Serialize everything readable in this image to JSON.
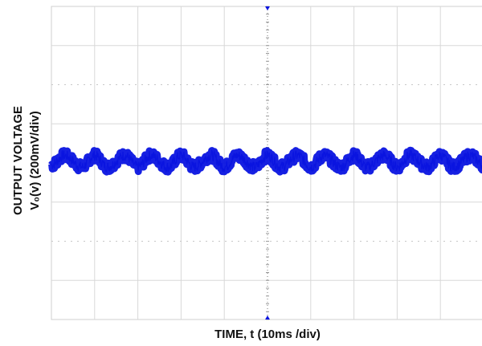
{
  "chart_data": {
    "type": "line",
    "title": "",
    "xlabel": "TIME, t (10ms /div)",
    "ylabel_line1": "OUTPUT VOLTAGE",
    "ylabel_line2": "V₀(v) (200mV/div)",
    "grid": true,
    "x_divisions": 10,
    "y_divisions": 8,
    "xlim": [
      0,
      100
    ],
    "ylim": [
      -800,
      800
    ],
    "x_unit": "ms",
    "y_unit": "mV",
    "series": [
      {
        "color": "#0a14e0",
        "x": [
          0,
          3,
          7,
          10,
          13,
          17,
          20,
          23,
          27,
          30,
          33,
          37,
          40,
          43,
          47,
          50,
          53,
          57,
          60,
          63,
          67,
          70,
          73,
          77,
          80,
          83,
          87,
          90,
          93,
          97,
          100
        ],
        "y": [
          -10,
          38,
          -20,
          38,
          -20,
          38,
          -20,
          38,
          -20,
          38,
          -20,
          38,
          -20,
          38,
          -20,
          38,
          -20,
          38,
          -20,
          38,
          -20,
          38,
          -20,
          38,
          -20,
          38,
          -20,
          38,
          -20,
          38,
          -10
        ]
      }
    ]
  },
  "colors": {
    "grid": "#d8d8d8",
    "axis_center": "#777777",
    "trace": "#0a14e0"
  }
}
